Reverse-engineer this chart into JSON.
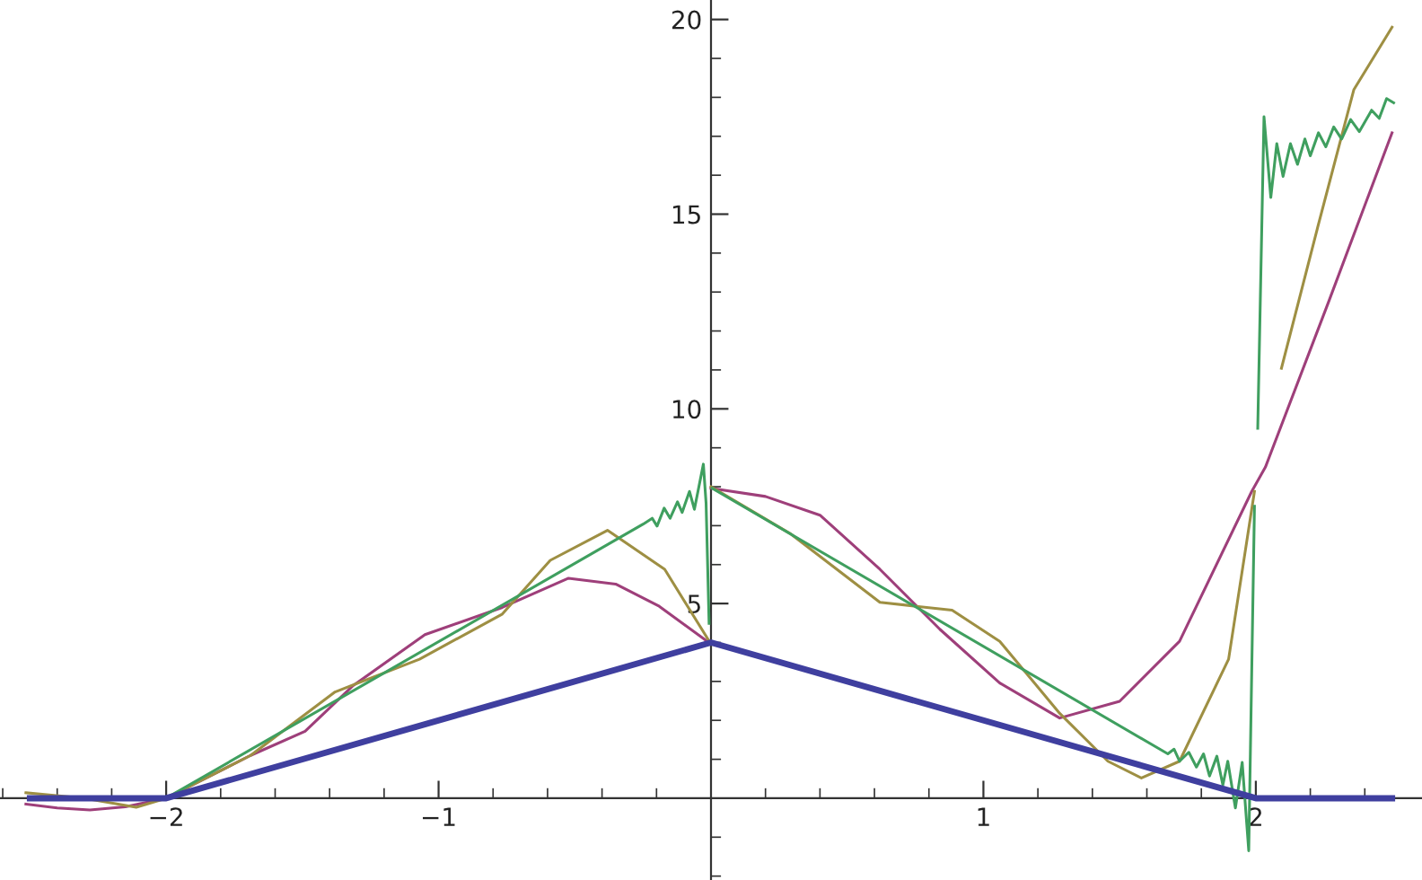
{
  "chart_data": {
    "type": "line",
    "xlim": [
      -2.61,
      2.61
    ],
    "ylim": [
      -2.1,
      20.5
    ],
    "xticks": [
      {
        "value": -2.6,
        "label": null
      },
      {
        "value": -2.4,
        "label": null
      },
      {
        "value": -2.2,
        "label": null
      },
      {
        "value": -2,
        "label": "−2"
      },
      {
        "value": -1.8,
        "label": null
      },
      {
        "value": -1.6,
        "label": null
      },
      {
        "value": -1.4,
        "label": null
      },
      {
        "value": -1.2,
        "label": null
      },
      {
        "value": -1,
        "label": "−1"
      },
      {
        "value": -0.8,
        "label": null
      },
      {
        "value": -0.6,
        "label": null
      },
      {
        "value": -0.4,
        "label": null
      },
      {
        "value": -0.2,
        "label": null
      },
      {
        "value": 0.2,
        "label": null
      },
      {
        "value": 0.4,
        "label": null
      },
      {
        "value": 0.6,
        "label": null
      },
      {
        "value": 0.8,
        "label": null
      },
      1,
      {
        "value": 1.2,
        "label": null
      },
      {
        "value": 1.4,
        "label": null
      },
      {
        "value": 1.6,
        "label": null
      },
      {
        "value": 1.8,
        "label": null
      },
      2,
      {
        "value": 2.2,
        "label": null
      },
      {
        "value": 2.4,
        "label": null
      }
    ],
    "yticks": [
      {
        "value": -2,
        "label": null
      },
      {
        "value": -1,
        "label": null
      },
      {
        "value": 1,
        "label": null
      },
      {
        "value": 2,
        "label": null
      },
      {
        "value": 3,
        "label": null
      },
      {
        "value": 4,
        "label": null
      },
      5,
      {
        "value": 6,
        "label": null
      },
      {
        "value": 7,
        "label": null
      },
      {
        "value": 8,
        "label": null
      },
      {
        "value": 9,
        "label": null
      },
      10,
      {
        "value": 11,
        "label": null
      },
      {
        "value": 12,
        "label": null
      },
      {
        "value": 13,
        "label": null
      },
      {
        "value": 14,
        "label": null
      },
      15,
      {
        "value": 16,
        "label": null
      },
      {
        "value": 17,
        "label": null
      },
      {
        "value": 18,
        "label": null
      },
      {
        "value": 19,
        "label": null
      },
      20
    ],
    "grid": false,
    "legend": false,
    "marker": "none",
    "line_style": "solid",
    "series": [
      {
        "color": "#9e3f7a",
        "x": [
          -2.515,
          -2.4,
          -2.28,
          -2.15,
          -2.0,
          -1.69,
          -1.49,
          -1.316,
          -1.05,
          -0.766,
          -0.523,
          -0.35,
          -0.19,
          0.0,
          null,
          0.0,
          0.2,
          0.4,
          0.62,
          0.84,
          1.06,
          1.28,
          1.5,
          1.72,
          1.985,
          2.035,
          2.27,
          2.5
        ],
        "values": [
          -0.15,
          -0.25,
          -0.3,
          -0.22,
          0.0,
          1.1,
          1.72,
          2.88,
          4.2,
          4.9,
          5.65,
          5.5,
          4.93,
          3.96,
          null,
          7.96,
          7.75,
          7.27,
          5.88,
          4.34,
          2.96,
          2.06,
          2.49,
          4.03,
          7.88,
          8.5,
          12.8,
          17.09
        ]
      },
      {
        "color": "#9e8f43",
        "x": [
          -2.515,
          -2.3,
          -2.11,
          -2.0,
          -1.69,
          -1.38,
          -1.07,
          -0.766,
          -0.59,
          -0.38,
          -0.17,
          0.0,
          null,
          0.0,
          0.29,
          0.62,
          0.885,
          1.06,
          1.28,
          1.457,
          1.58,
          1.72,
          1.9,
          1.995,
          null,
          2.094,
          2.227,
          2.36,
          2.5
        ],
        "values": [
          0.14,
          0.0,
          -0.23,
          0.0,
          1.1,
          2.73,
          3.57,
          4.73,
          6.11,
          6.88,
          5.88,
          3.96,
          null,
          8.0,
          6.8,
          5.03,
          4.83,
          4.03,
          2.18,
          0.95,
          0.52,
          0.95,
          3.57,
          7.88,
          null,
          11.04,
          14.66,
          18.2,
          19.8
        ]
      },
      {
        "color": "#3f9f5f",
        "x": [
          -2.5,
          -2.0,
          -0.249,
          -0.216,
          -0.198,
          -0.172,
          -0.15,
          -0.123,
          -0.106,
          -0.079,
          -0.061,
          -0.028,
          -0.018,
          -0.007,
          null,
          0.004,
          1.677,
          1.7,
          1.72,
          1.754,
          1.782,
          1.808,
          1.83,
          1.857,
          1.879,
          1.897,
          1.925,
          1.95,
          1.974,
          1.995,
          null,
          2.007,
          2.03,
          2.055,
          2.077,
          2.1,
          2.127,
          2.153,
          2.18,
          2.2,
          2.23,
          2.257,
          2.286,
          2.315,
          2.348,
          2.38,
          2.425,
          2.453,
          2.48,
          2.506
        ],
        "values": [
          0.0,
          0.0,
          7.04,
          7.19,
          6.99,
          7.45,
          7.19,
          7.61,
          7.34,
          7.88,
          7.42,
          8.58,
          7.57,
          4.49,
          null,
          7.96,
          1.14,
          1.26,
          0.95,
          1.18,
          0.8,
          1.14,
          0.57,
          1.08,
          0.34,
          0.95,
          -0.25,
          0.92,
          -1.35,
          7.5,
          null,
          9.5,
          17.5,
          15.43,
          16.81,
          15.97,
          16.81,
          16.28,
          16.93,
          16.5,
          17.09,
          16.73,
          17.24,
          16.93,
          17.43,
          17.12,
          17.67,
          17.46,
          17.97,
          17.86
        ]
      },
      {
        "color": "#3f3f9f",
        "x": [
          -2.5,
          -2.0,
          0.0,
          2.0,
          2.5
        ],
        "values": [
          0,
          0,
          4,
          0,
          0
        ]
      }
    ]
  }
}
